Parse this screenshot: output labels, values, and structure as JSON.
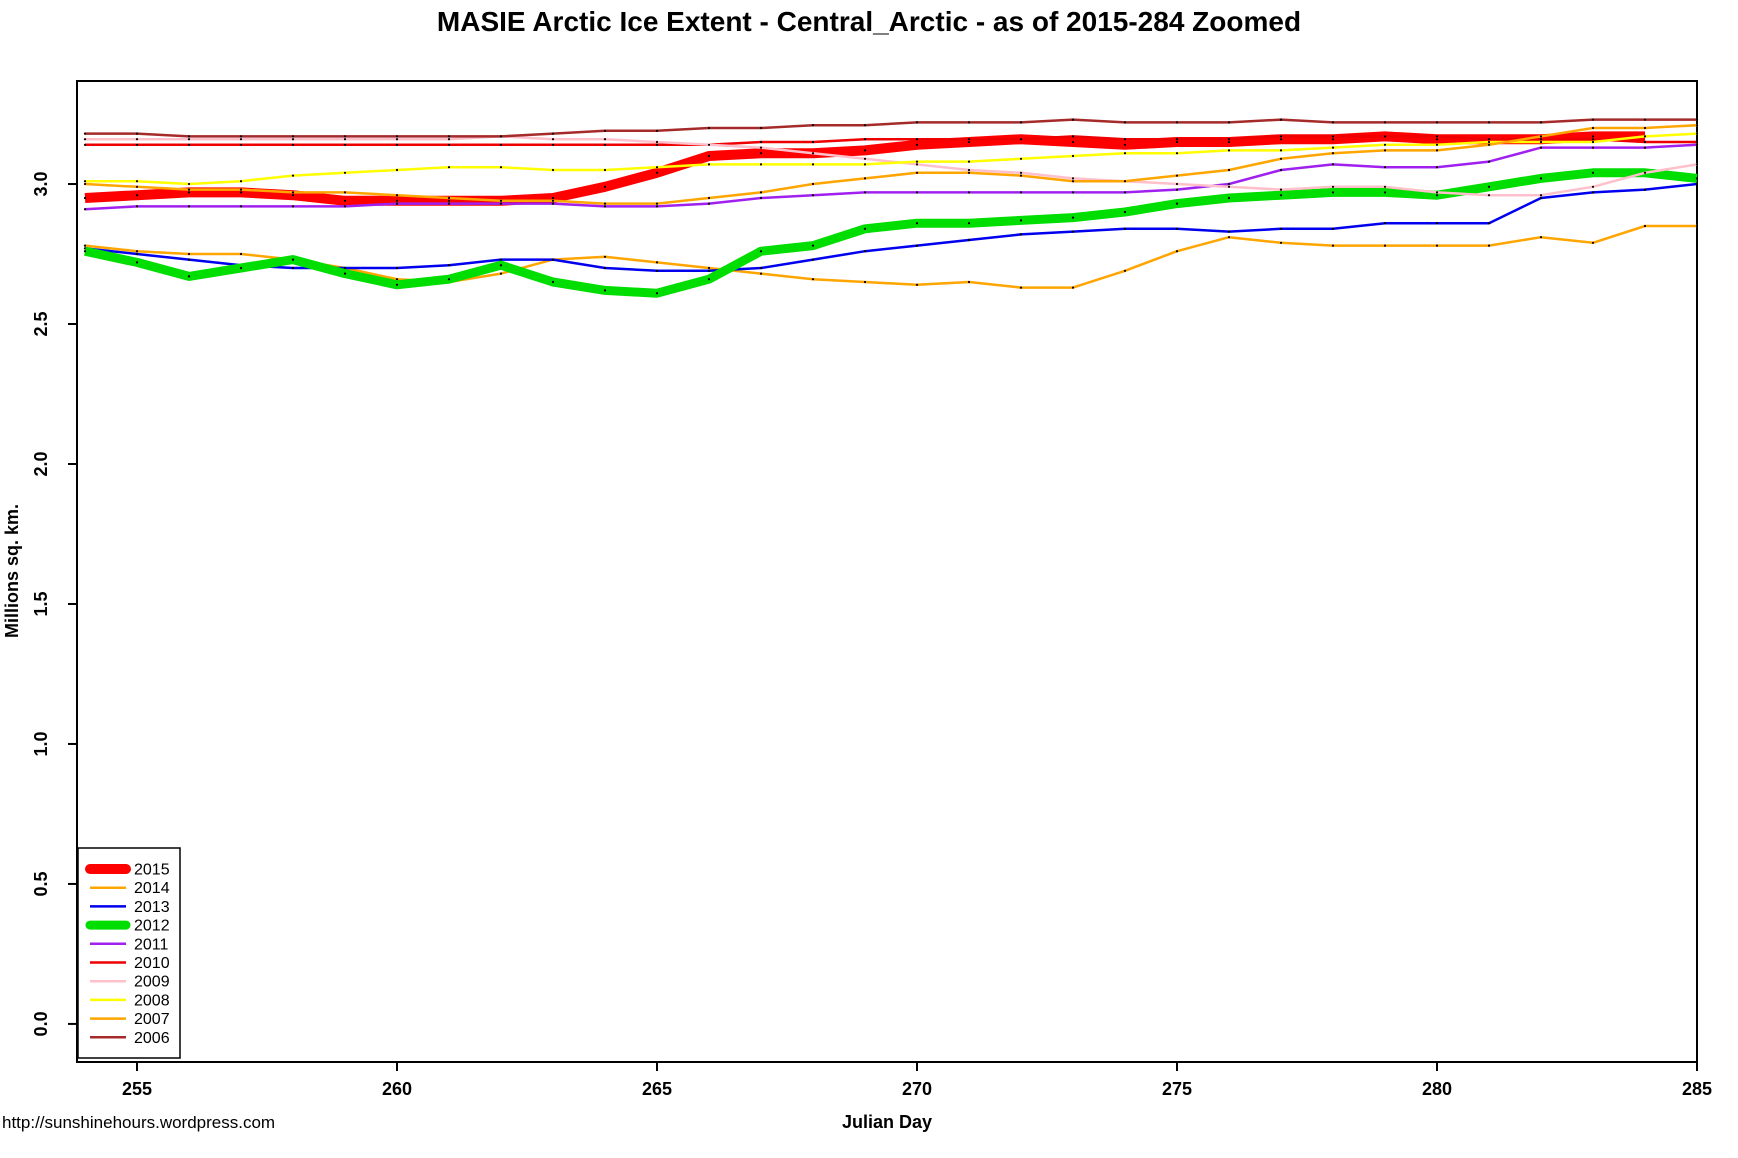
{
  "header": {
    "title": "MASIE Arctic Ice Extent - Central_Arctic - as of 2015-284 Zoomed"
  },
  "footer": {
    "url": "http://sunshinehours.wordpress.com"
  },
  "chart_data": {
    "type": "line",
    "title": "MASIE Arctic Ice Extent - Central_Arctic - as of 2015-284 Zoomed",
    "xlabel": "Julian Day",
    "ylabel": "Millions sq. km.",
    "grid": false,
    "legend_position": "bottom-left",
    "xlim": [
      253.846,
      285
    ],
    "ylim": [
      -0.136,
      3.368
    ],
    "x_ticks": [
      "255",
      "260",
      "265",
      "270",
      "275",
      "280",
      "285"
    ],
    "y_ticks": [
      "0.0",
      "0.5",
      "1.0",
      "1.5",
      "2.0",
      "2.5",
      "3.0"
    ],
    "x": [
      254,
      255,
      256,
      257,
      258,
      259,
      260,
      261,
      262,
      263,
      264,
      265,
      266,
      267,
      268,
      269,
      270,
      271,
      272,
      273,
      274,
      275,
      276,
      277,
      278,
      279,
      280,
      281,
      282,
      283,
      284,
      285
    ],
    "series": [
      {
        "name": "2015",
        "color": "#FF0000",
        "width": 10,
        "values": [
          2.95,
          2.96,
          2.97,
          2.97,
          2.96,
          2.94,
          2.94,
          2.94,
          2.94,
          2.95,
          2.99,
          3.04,
          3.1,
          3.11,
          3.11,
          3.12,
          3.14,
          3.15,
          3.16,
          3.15,
          3.14,
          3.15,
          3.15,
          3.16,
          3.16,
          3.17,
          3.16,
          3.16,
          3.16,
          3.17,
          3.17
        ]
      },
      {
        "name": "2014",
        "color": "#FFA500",
        "width": 2.5,
        "values": [
          2.78,
          2.76,
          2.75,
          2.75,
          2.73,
          2.7,
          2.66,
          2.65,
          2.68,
          2.73,
          2.74,
          2.72,
          2.7,
          2.68,
          2.66,
          2.65,
          2.64,
          2.65,
          2.63,
          2.63,
          2.69,
          2.76,
          2.81,
          2.79,
          2.78,
          2.78,
          2.78,
          2.78,
          2.81,
          2.79,
          2.85,
          2.85
        ]
      },
      {
        "name": "2013",
        "color": "#0000EE",
        "width": 2.5,
        "values": [
          2.77,
          2.75,
          2.73,
          2.71,
          2.7,
          2.7,
          2.7,
          2.71,
          2.73,
          2.73,
          2.7,
          2.69,
          2.69,
          2.7,
          2.73,
          2.76,
          2.78,
          2.8,
          2.82,
          2.83,
          2.84,
          2.84,
          2.83,
          2.84,
          2.84,
          2.86,
          2.86,
          2.86,
          2.95,
          2.97,
          2.98,
          3.0
        ]
      },
      {
        "name": "2012",
        "color": "#00DD00",
        "width": 9,
        "values": [
          2.76,
          2.72,
          2.67,
          2.7,
          2.73,
          2.68,
          2.64,
          2.66,
          2.71,
          2.65,
          2.62,
          2.61,
          2.66,
          2.76,
          2.78,
          2.84,
          2.86,
          2.86,
          2.87,
          2.88,
          2.9,
          2.93,
          2.95,
          2.96,
          2.97,
          2.97,
          2.96,
          2.99,
          3.02,
          3.04,
          3.04,
          3.02
        ]
      },
      {
        "name": "2011",
        "color": "#A020F0",
        "width": 2.5,
        "values": [
          2.91,
          2.92,
          2.92,
          2.92,
          2.92,
          2.92,
          2.93,
          2.93,
          2.93,
          2.93,
          2.92,
          2.92,
          2.93,
          2.95,
          2.96,
          2.97,
          2.97,
          2.97,
          2.97,
          2.97,
          2.97,
          2.98,
          3.0,
          3.05,
          3.07,
          3.06,
          3.06,
          3.08,
          3.13,
          3.13,
          3.13,
          3.14
        ]
      },
      {
        "name": "2010",
        "color": "#EE0000",
        "width": 2.5,
        "values": [
          3.14,
          3.14,
          3.14,
          3.14,
          3.14,
          3.14,
          3.14,
          3.14,
          3.14,
          3.14,
          3.14,
          3.14,
          3.14,
          3.15,
          3.15,
          3.16,
          3.16,
          3.16,
          3.16,
          3.17,
          3.16,
          3.16,
          3.16,
          3.17,
          3.17,
          3.17,
          3.17,
          3.16,
          3.16,
          3.16,
          3.15,
          3.15
        ]
      },
      {
        "name": "2009",
        "color": "#FFC0CB",
        "width": 2.5,
        "values": [
          3.16,
          3.16,
          3.16,
          3.16,
          3.16,
          3.16,
          3.16,
          3.16,
          3.17,
          3.16,
          3.16,
          3.15,
          3.14,
          3.13,
          3.11,
          3.09,
          3.07,
          3.05,
          3.04,
          3.02,
          3.01,
          3.0,
          2.99,
          2.98,
          2.99,
          2.99,
          2.97,
          2.96,
          2.96,
          2.99,
          3.04,
          3.07
        ]
      },
      {
        "name": "2008",
        "color": "#FFFF00",
        "width": 2.5,
        "values": [
          3.01,
          3.01,
          3.0,
          3.01,
          3.03,
          3.04,
          3.05,
          3.06,
          3.06,
          3.05,
          3.05,
          3.06,
          3.07,
          3.07,
          3.07,
          3.07,
          3.08,
          3.08,
          3.09,
          3.1,
          3.11,
          3.11,
          3.12,
          3.12,
          3.13,
          3.14,
          3.14,
          3.15,
          3.15,
          3.15,
          3.17,
          3.18
        ]
      },
      {
        "name": "2007",
        "color": "#FFA500",
        "width": 2.5,
        "values": [
          3.0,
          2.99,
          2.98,
          2.98,
          2.97,
          2.97,
          2.96,
          2.95,
          2.94,
          2.94,
          2.93,
          2.93,
          2.95,
          2.97,
          3.0,
          3.02,
          3.04,
          3.04,
          3.03,
          3.01,
          3.01,
          3.03,
          3.05,
          3.09,
          3.11,
          3.12,
          3.12,
          3.14,
          3.17,
          3.2,
          3.2,
          3.21
        ]
      },
      {
        "name": "2006",
        "color": "#A52A2A",
        "width": 2.5,
        "values": [
          3.18,
          3.18,
          3.17,
          3.17,
          3.17,
          3.17,
          3.17,
          3.17,
          3.17,
          3.18,
          3.19,
          3.19,
          3.2,
          3.2,
          3.21,
          3.21,
          3.22,
          3.22,
          3.22,
          3.23,
          3.22,
          3.22,
          3.22,
          3.23,
          3.22,
          3.22,
          3.22,
          3.22,
          3.22,
          3.23,
          3.23,
          3.23
        ]
      }
    ]
  }
}
